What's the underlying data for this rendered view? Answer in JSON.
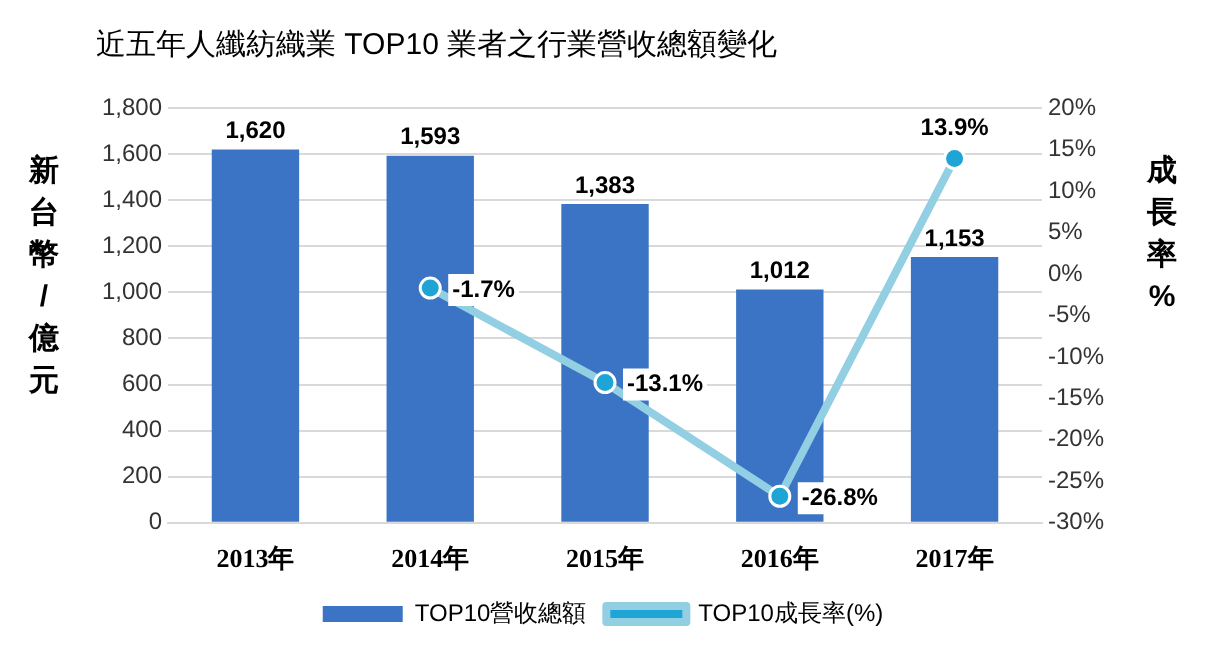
{
  "chart_data": {
    "type": "bar",
    "title": "近五年人纖紡織業 TOP10 業者之行業營收總額變化",
    "ylabel": "新台幣/億元",
    "y2label": "成長率%",
    "categories": [
      "2013年",
      "2014年",
      "2015年",
      "2016年",
      "2017年"
    ],
    "series": [
      {
        "name": "TOP10營收總額",
        "color": "#3b74c5",
        "values": [
          1620,
          1593,
          1383,
          1012,
          1153
        ],
        "value_labels": [
          "1,620",
          "1,593",
          "1,383",
          "1,012",
          "1,153"
        ]
      },
      {
        "name": "TOP10成長率(%)",
        "type": "line",
        "axis": "y2",
        "color": "#92cfe3",
        "values": [
          null,
          -1.7,
          -13.1,
          -26.8,
          13.9
        ],
        "value_labels": [
          null,
          "-1.7%",
          "-13.1%",
          "-26.8%",
          "13.9%"
        ]
      }
    ],
    "ylim": [
      0,
      1800
    ],
    "yticks": [
      {
        "value": 0,
        "label": "0"
      },
      {
        "value": 200,
        "label": "200"
      },
      {
        "value": 400,
        "label": "400"
      },
      {
        "value": 600,
        "label": "600"
      },
      {
        "value": 800,
        "label": "800"
      },
      {
        "value": 1000,
        "label": "1,000"
      },
      {
        "value": 1200,
        "label": "1,200"
      },
      {
        "value": 1400,
        "label": "1,400"
      },
      {
        "value": 1600,
        "label": "1,600"
      },
      {
        "value": 1800,
        "label": "1,800"
      }
    ],
    "y2lim": [
      -30,
      20
    ],
    "y2ticks": [
      {
        "value": -30,
        "label": "-30%"
      },
      {
        "value": -25,
        "label": "-25%"
      },
      {
        "value": -20,
        "label": "-20%"
      },
      {
        "value": -15,
        "label": "-15%"
      },
      {
        "value": -10,
        "label": "-10%"
      },
      {
        "value": -5,
        "label": "-5%"
      },
      {
        "value": 0,
        "label": "0%"
      },
      {
        "value": 5,
        "label": "5%"
      },
      {
        "value": 10,
        "label": "10%"
      },
      {
        "value": 15,
        "label": "15%"
      },
      {
        "value": 20,
        "label": "20%"
      }
    ],
    "grid": "y",
    "legend": "bottom",
    "marker": "circle",
    "line_style": "solid"
  }
}
